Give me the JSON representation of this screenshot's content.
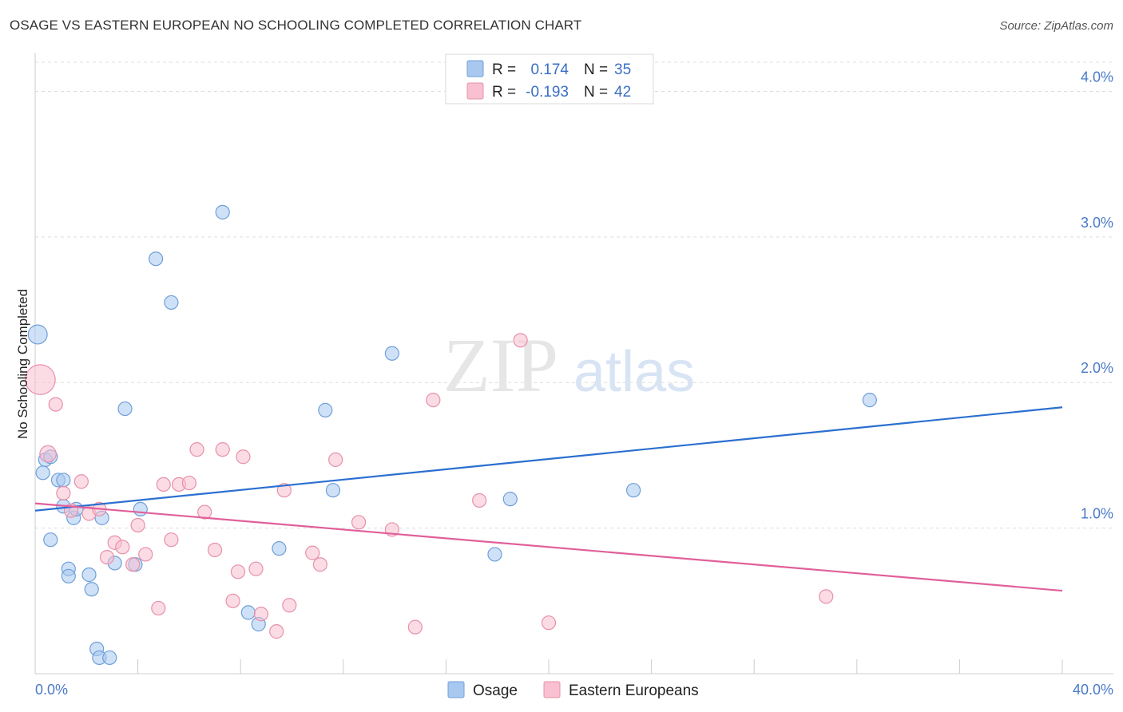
{
  "header": {
    "title": "OSAGE VS EASTERN EUROPEAN NO SCHOOLING COMPLETED CORRELATION CHART",
    "source": "Source: ZipAtlas.com"
  },
  "watermark": {
    "zip": "ZIP",
    "atlas": "atlas"
  },
  "chart_data": {
    "type": "scatter",
    "title": "OSAGE VS EASTERN EUROPEAN NO SCHOOLING COMPLETED CORRELATION CHART",
    "ylabel": "No Schooling Completed",
    "xlim": [
      0,
      40
    ],
    "ylim": [
      0,
      4.2
    ],
    "x_tick_labels": [
      {
        "value": 0,
        "label": "0.0%"
      },
      {
        "value": 40,
        "label": "40.0%"
      }
    ],
    "y_tick_labels": [
      {
        "value": 1,
        "label": "1.0%"
      },
      {
        "value": 2,
        "label": "2.0%"
      },
      {
        "value": 3,
        "label": "3.0%"
      },
      {
        "value": 4,
        "label": "4.0%"
      }
    ],
    "grid": true,
    "legend_position": "top-center",
    "series": [
      {
        "name": "Osage",
        "color": "#a8c8f0",
        "stroke": "#6f9fd8",
        "line_color": "#2b6fd0",
        "r_label": "R =",
        "r_value": "0.174",
        "n_label": "N =",
        "n_value": "35",
        "trend": [
          [
            0,
            1.12
          ],
          [
            40,
            1.83
          ]
        ],
        "points": [
          [
            0.1,
            2.33,
            1.4
          ],
          [
            0.3,
            1.38,
            1
          ],
          [
            0.4,
            1.47,
            1
          ],
          [
            0.6,
            1.49,
            1
          ],
          [
            0.6,
            0.92,
            1
          ],
          [
            0.9,
            1.33,
            1
          ],
          [
            1.1,
            1.33,
            1
          ],
          [
            1.1,
            1.15,
            1
          ],
          [
            1.3,
            0.72,
            1
          ],
          [
            1.3,
            0.67,
            1
          ],
          [
            1.5,
            1.07,
            1
          ],
          [
            2.1,
            0.68,
            1
          ],
          [
            2.2,
            0.58,
            1
          ],
          [
            2.4,
            0.17,
            1
          ],
          [
            2.5,
            0.11,
            1
          ],
          [
            2.6,
            1.07,
            1
          ],
          [
            2.9,
            0.11,
            1
          ],
          [
            3.1,
            0.76,
            1
          ],
          [
            3.5,
            1.82,
            1
          ],
          [
            3.9,
            0.75,
            1
          ],
          [
            4.1,
            1.13,
            1
          ],
          [
            4.7,
            2.85,
            1
          ],
          [
            5.3,
            2.55,
            1
          ],
          [
            7.3,
            3.17,
            1
          ],
          [
            8.3,
            0.42,
            1
          ],
          [
            8.7,
            0.34,
            1
          ],
          [
            9.5,
            0.86,
            1
          ],
          [
            11.3,
            1.81,
            1
          ],
          [
            11.6,
            1.26,
            1
          ],
          [
            13.9,
            2.2,
            1
          ],
          [
            17.9,
            0.82,
            1
          ],
          [
            18.5,
            1.2,
            1
          ],
          [
            23.3,
            1.26,
            1
          ],
          [
            32.5,
            1.88,
            1
          ],
          [
            1.6,
            1.13,
            1
          ]
        ]
      },
      {
        "name": "Eastern Europeans",
        "color": "#f8c0d0",
        "stroke": "#e890aa",
        "line_color": "#e0609a",
        "r_label": "R =",
        "r_value": "-0.193",
        "n_label": "N =",
        "n_value": "42",
        "trend": [
          [
            0,
            1.17
          ],
          [
            40,
            0.57
          ]
        ],
        "points": [
          [
            0.2,
            2.02,
            2.2
          ],
          [
            0.5,
            1.51,
            1.2
          ],
          [
            0.8,
            1.85,
            1
          ],
          [
            1.1,
            1.24,
            1
          ],
          [
            1.4,
            1.12,
            1
          ],
          [
            1.8,
            1.32,
            1
          ],
          [
            2.1,
            1.1,
            1
          ],
          [
            2.5,
            1.13,
            1
          ],
          [
            2.8,
            0.8,
            1
          ],
          [
            3.1,
            0.9,
            1
          ],
          [
            3.4,
            0.87,
            1
          ],
          [
            3.8,
            0.75,
            1
          ],
          [
            4.0,
            1.02,
            1
          ],
          [
            4.3,
            0.82,
            1
          ],
          [
            4.8,
            0.45,
            1
          ],
          [
            5.0,
            1.3,
            1
          ],
          [
            5.3,
            0.92,
            1
          ],
          [
            5.6,
            1.3,
            1
          ],
          [
            6.0,
            1.31,
            1
          ],
          [
            6.3,
            1.54,
            1
          ],
          [
            6.6,
            1.11,
            1
          ],
          [
            7.0,
            0.85,
            1
          ],
          [
            7.3,
            1.54,
            1
          ],
          [
            7.7,
            0.5,
            1
          ],
          [
            7.9,
            0.7,
            1
          ],
          [
            8.1,
            1.49,
            1
          ],
          [
            8.6,
            0.72,
            1
          ],
          [
            8.8,
            0.41,
            1
          ],
          [
            9.4,
            0.29,
            1
          ],
          [
            9.7,
            1.26,
            1
          ],
          [
            9.9,
            0.47,
            1
          ],
          [
            10.8,
            0.83,
            1
          ],
          [
            11.1,
            0.75,
            1
          ],
          [
            11.7,
            1.47,
            1
          ],
          [
            12.6,
            1.04,
            1
          ],
          [
            13.9,
            0.99,
            1
          ],
          [
            14.8,
            0.32,
            1
          ],
          [
            15.5,
            1.88,
            1
          ],
          [
            17.3,
            1.19,
            1
          ],
          [
            18.9,
            2.29,
            1
          ],
          [
            20.0,
            0.35,
            1
          ],
          [
            30.8,
            0.53,
            1
          ]
        ]
      }
    ]
  }
}
